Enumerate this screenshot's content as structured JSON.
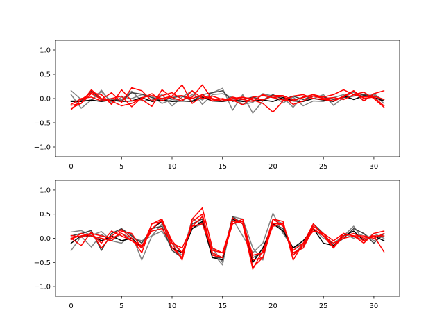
{
  "chart_data": [
    {
      "type": "line",
      "title": "",
      "xlabel": "",
      "ylabel": "",
      "xlim": [
        -1.55,
        32.55
      ],
      "ylim": [
        -1.2,
        1.2
      ],
      "xticks": [
        0,
        5,
        10,
        15,
        20,
        25,
        30
      ],
      "yticks": [
        -1.0,
        -0.5,
        0.0,
        0.5,
        1.0
      ],
      "xtick_labels": [
        "0",
        "5",
        "10",
        "15",
        "20",
        "25",
        "30"
      ],
      "ytick_labels": [
        "−1.0",
        "−0.5",
        "0.0",
        "0.5",
        "1.0"
      ],
      "grid": false,
      "x": [
        0,
        1,
        2,
        3,
        4,
        5,
        6,
        7,
        8,
        9,
        10,
        11,
        12,
        13,
        14,
        15,
        16,
        17,
        18,
        19,
        20,
        21,
        22,
        23,
        24,
        25,
        26,
        27,
        28,
        29,
        30,
        31
      ],
      "series": [
        {
          "color": "#808080",
          "values": [
            0.16,
            -0.02,
            -0.05,
            0.17,
            -0.1,
            0.03,
            0.0,
            0.08,
            0.05,
            -0.1,
            -0.02,
            -0.05,
            0.08,
            -0.03,
            0.12,
            0.21,
            -0.24,
            0.08,
            -0.3,
            -0.05,
            0.06,
            -0.09,
            0.03,
            -0.15,
            -0.05,
            -0.06,
            0.02,
            0.08,
            -0.02,
            0.05,
            0.08,
            -0.1
          ]
        },
        {
          "color": "#808080",
          "values": [
            0.08,
            -0.2,
            -0.03,
            0.14,
            -0.06,
            -0.02,
            0.15,
            -0.05,
            -0.03,
            0.08,
            -0.15,
            0.03,
            0.16,
            -0.12,
            0.08,
            0.1,
            0.02,
            -0.12,
            -0.08,
            0.1,
            0.05,
            0.02,
            -0.18,
            0.05,
            0.0,
            0.08,
            -0.14,
            0.02,
            0.13,
            -0.05,
            0.1,
            -0.05
          ]
        },
        {
          "color": "#404040",
          "values": [
            -0.05,
            -0.05,
            0.15,
            -0.03,
            0.0,
            -0.05,
            0.12,
            0.09,
            0.02,
            -0.05,
            0.02,
            0.05,
            -0.05,
            0.08,
            0.12,
            0.16,
            -0.06,
            -0.02,
            0.03,
            -0.03,
            0.08,
            -0.02,
            0.05,
            -0.02,
            0.05,
            0.03,
            -0.02,
            0.02,
            0.05,
            0.08,
            0.05,
            -0.02
          ]
        },
        {
          "color": "#000000",
          "values": [
            -0.06,
            -0.06,
            -0.03,
            -0.06,
            -0.03,
            -0.06,
            -0.05,
            0.02,
            -0.06,
            -0.03,
            -0.06,
            -0.05,
            -0.06,
            0.03,
            -0.05,
            -0.06,
            -0.03,
            -0.06,
            -0.05,
            -0.03,
            -0.06,
            0.02,
            -0.05,
            -0.06,
            0.0,
            -0.03,
            -0.06,
            0.05,
            -0.02,
            0.06,
            0.02,
            -0.05
          ]
        },
        {
          "color": "#ff0000",
          "values": [
            -0.2,
            -0.1,
            0.18,
            0.0,
            -0.05,
            -0.15,
            -0.1,
            0.0,
            0.1,
            -0.05,
            0.05,
            0.28,
            -0.1,
            0.05,
            0.0,
            -0.05,
            0.0,
            0.03,
            -0.03,
            -0.1,
            -0.28,
            -0.05,
            0.05,
            0.08,
            0.0,
            -0.02,
            -0.05,
            0.03,
            0.16,
            0.0,
            0.03,
            -0.15
          ]
        },
        {
          "color": "#ff0000",
          "values": [
            -0.23,
            -0.02,
            0.12,
            0.08,
            -0.12,
            0.18,
            -0.05,
            -0.02,
            -0.16,
            0.18,
            0.02,
            -0.05,
            0.16,
            0.0,
            0.05,
            -0.02,
            -0.03,
            -0.13,
            0.03,
            0.06,
            0.02,
            -0.03,
            -0.05,
            0.03,
            0.08,
            0.03,
            0.08,
            0.18,
            0.08,
            0.13,
            0.0,
            -0.18
          ]
        },
        {
          "color": "#ff0000",
          "values": [
            -0.14,
            -0.1,
            0.1,
            -0.02,
            0.12,
            -0.08,
            0.22,
            0.16,
            -0.05,
            0.06,
            0.12,
            -0.02,
            0.03,
            0.28,
            -0.02,
            -0.05,
            0.03,
            -0.02,
            -0.06,
            0.08,
            0.02,
            0.05,
            -0.12,
            -0.05,
            0.05,
            0.0,
            0.02,
            -0.02,
            0.08,
            0.03,
            0.05,
            -0.02
          ]
        },
        {
          "color": "#ff0000",
          "values": [
            -0.12,
            0.0,
            0.03,
            -0.05,
            0.0,
            0.05,
            -0.17,
            0.02,
            0.06,
            0.0,
            0.05,
            0.06,
            0.0,
            0.08,
            -0.05,
            0.0,
            -0.05,
            0.02,
            0.0,
            -0.03,
            0.06,
            0.06,
            -0.03,
            0.02,
            0.08,
            0.0,
            -0.05,
            0.05,
            0.16,
            -0.05,
            0.1,
            0.16
          ]
        }
      ]
    },
    {
      "type": "line",
      "title": "",
      "xlabel": "",
      "ylabel": "",
      "xlim": [
        -1.55,
        32.55
      ],
      "ylim": [
        -1.2,
        1.2
      ],
      "xticks": [
        0,
        5,
        10,
        15,
        20,
        25,
        30
      ],
      "yticks": [
        -1.0,
        -0.5,
        0.0,
        0.5,
        1.0
      ],
      "xtick_labels": [
        "0",
        "5",
        "10",
        "15",
        "20",
        "25",
        "30"
      ],
      "ytick_labels": [
        "−1.0",
        "−0.5",
        "0.0",
        "0.5",
        "1.0"
      ],
      "grid": false,
      "x": [
        0,
        1,
        2,
        3,
        4,
        5,
        6,
        7,
        8,
        9,
        10,
        11,
        12,
        13,
        14,
        15,
        16,
        17,
        18,
        19,
        20,
        21,
        22,
        23,
        24,
        25,
        26,
        27,
        28,
        29,
        30,
        31
      ],
      "series": [
        {
          "color": "#808080",
          "values": [
            0.13,
            0.16,
            0.06,
            0.14,
            -0.05,
            -0.1,
            0.08,
            -0.45,
            0.05,
            0.3,
            -0.1,
            -0.3,
            0.2,
            0.3,
            -0.2,
            -0.5,
            0.4,
            0.05,
            -0.3,
            -0.1,
            0.52,
            0.1,
            -0.2,
            -0.1,
            0.2,
            0.0,
            -0.1,
            0.05,
            0.25,
            -0.05,
            0.1,
            0.0
          ]
        },
        {
          "color": "#808080",
          "values": [
            -0.25,
            0.04,
            -0.18,
            0.08,
            -0.05,
            0.1,
            0.0,
            -0.05,
            0.05,
            0.15,
            -0.2,
            -0.35,
            0.4,
            0.3,
            -0.3,
            -0.55,
            0.45,
            0.4,
            -0.2,
            -0.45,
            0.4,
            0.3,
            -0.35,
            -0.1,
            0.2,
            0.05,
            -0.2,
            0.1,
            0.0,
            0.1,
            -0.05,
            0.05
          ]
        },
        {
          "color": "#404040",
          "values": [
            0.05,
            0.1,
            0.16,
            -0.25,
            0.1,
            0.2,
            0.05,
            -0.1,
            0.2,
            0.25,
            -0.25,
            -0.4,
            0.3,
            0.4,
            -0.4,
            -0.4,
            0.45,
            0.3,
            -0.4,
            -0.3,
            0.3,
            0.2,
            -0.3,
            -0.2,
            0.3,
            0.1,
            -0.15,
            0.0,
            0.2,
            0.1,
            -0.1,
            0.1
          ]
        },
        {
          "color": "#000000",
          "values": [
            -0.1,
            0.05,
            0.05,
            -0.05,
            0.05,
            -0.05,
            0.0,
            -0.2,
            0.2,
            0.35,
            -0.2,
            -0.3,
            0.2,
            0.35,
            -0.4,
            -0.45,
            0.4,
            0.3,
            -0.5,
            -0.2,
            0.3,
            0.15,
            -0.2,
            -0.05,
            0.2,
            -0.1,
            -0.15,
            0.05,
            0.15,
            -0.05,
            0.05,
            -0.05
          ]
        },
        {
          "color": "#ff0000",
          "values": [
            0.0,
            -0.15,
            0.13,
            -0.2,
            0.05,
            0.18,
            0.0,
            -0.3,
            0.3,
            0.4,
            -0.1,
            -0.45,
            0.4,
            0.63,
            -0.2,
            -0.3,
            0.35,
            0.35,
            -0.6,
            -0.4,
            0.4,
            0.35,
            -0.45,
            -0.1,
            0.3,
            0.05,
            -0.2,
            0.05,
            0.1,
            0.0,
            0.05,
            -0.28
          ]
        },
        {
          "color": "#ff0000",
          "values": [
            0.06,
            0.02,
            0.1,
            -0.1,
            0.15,
            0.05,
            -0.05,
            -0.2,
            0.2,
            0.38,
            -0.05,
            -0.3,
            0.25,
            0.45,
            -0.35,
            -0.4,
            0.42,
            0.3,
            -0.64,
            -0.25,
            0.25,
            0.3,
            -0.35,
            -0.15,
            0.25,
            0.1,
            -0.18,
            0.1,
            0.05,
            -0.1,
            0.1,
            0.15
          ]
        },
        {
          "color": "#ff0000",
          "values": [
            -0.03,
            0.1,
            0.05,
            0.0,
            -0.05,
            0.15,
            0.1,
            -0.2,
            0.3,
            0.35,
            -0.2,
            -0.4,
            0.35,
            0.5,
            -0.3,
            -0.4,
            0.3,
            0.4,
            -0.45,
            -0.4,
            0.3,
            0.3,
            -0.3,
            -0.2,
            0.2,
            0.05,
            -0.1,
            0.0,
            0.05,
            0.05,
            0.0,
            0.1
          ]
        },
        {
          "color": "#ff0000",
          "values": [
            0.0,
            0.05,
            0.1,
            0.05,
            0.0,
            0.1,
            -0.05,
            -0.15,
            0.15,
            0.2,
            -0.1,
            -0.2,
            0.25,
            0.3,
            -0.25,
            -0.3,
            0.3,
            0.35,
            -0.35,
            -0.3,
            0.4,
            0.25,
            -0.25,
            -0.1,
            0.15,
            0.1,
            -0.05,
            0.1,
            0.05,
            -0.05,
            0.05,
            0.05
          ]
        }
      ]
    }
  ]
}
